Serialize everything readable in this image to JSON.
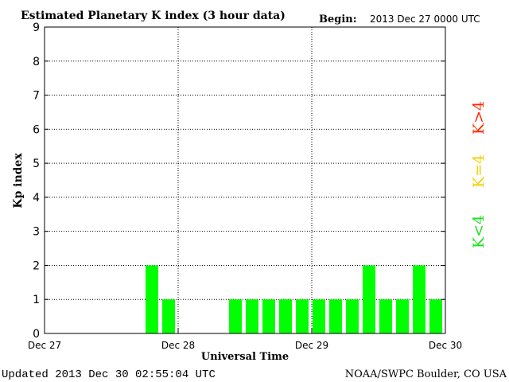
{
  "chart_data": {
    "type": "bar",
    "title": "Estimated Planetary K index (3 hour data)",
    "begin_label": "Begin:",
    "begin_value": "2013 Dec 27 0000 UTC",
    "xlabel": "Universal Time",
    "ylabel": "Kp index",
    "ylim": [
      0,
      9
    ],
    "yticks": [
      "0",
      "1",
      "2",
      "3",
      "4",
      "5",
      "6",
      "7",
      "8",
      "9"
    ],
    "xlim_days": [
      0,
      3
    ],
    "xticks": [
      {
        "label": "Dec 27",
        "day": 0
      },
      {
        "label": "Dec 28",
        "day": 1
      },
      {
        "label": "Dec 29",
        "day": 2
      },
      {
        "label": "Dec 30",
        "day": 3
      }
    ],
    "bin_hours": 3,
    "grid": true,
    "bar_color": "#00ff00",
    "values": [
      0,
      0,
      0,
      0,
      0,
      0,
      2,
      1,
      0,
      0,
      0,
      1,
      1,
      1,
      1,
      1,
      1,
      1,
      1,
      2,
      1,
      1,
      2,
      1
    ],
    "legend": [
      {
        "label": "K<4",
        "color": "#22dd22"
      },
      {
        "label": "K=4",
        "color": "#f2d000"
      },
      {
        "label": "K>4",
        "color": "#ff2a00"
      }
    ]
  },
  "footer": {
    "updated": "Updated 2013 Dec 30 02:55:04 UTC",
    "source": "NOAA/SWPC Boulder, CO USA"
  }
}
